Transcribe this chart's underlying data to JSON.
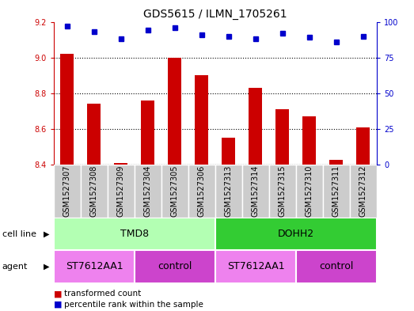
{
  "title": "GDS5615 / ILMN_1705261",
  "samples": [
    "GSM1527307",
    "GSM1527308",
    "GSM1527309",
    "GSM1527304",
    "GSM1527305",
    "GSM1527306",
    "GSM1527313",
    "GSM1527314",
    "GSM1527315",
    "GSM1527310",
    "GSM1527311",
    "GSM1527312"
  ],
  "bar_values": [
    9.02,
    8.74,
    8.41,
    8.76,
    9.0,
    8.9,
    8.55,
    8.83,
    8.71,
    8.67,
    8.43,
    8.61
  ],
  "dot_values": [
    97,
    93,
    88,
    94,
    96,
    91,
    90,
    88,
    92,
    89,
    86,
    90
  ],
  "ylim_left": [
    8.4,
    9.2
  ],
  "ylim_right": [
    0,
    100
  ],
  "yticks_left": [
    8.4,
    8.6,
    8.8,
    9.0,
    9.2
  ],
  "yticks_right": [
    0,
    25,
    50,
    75,
    100
  ],
  "bar_color": "#cc0000",
  "dot_color": "#0000cc",
  "cell_line_groups": [
    {
      "label": "TMD8",
      "start": 0,
      "end": 6,
      "color": "#b3ffb3"
    },
    {
      "label": "DOHH2",
      "start": 6,
      "end": 12,
      "color": "#33cc33"
    }
  ],
  "agent_groups": [
    {
      "label": "ST7612AA1",
      "start": 0,
      "end": 3,
      "color": "#ee82ee"
    },
    {
      "label": "control",
      "start": 3,
      "end": 6,
      "color": "#cc44cc"
    },
    {
      "label": "ST7612AA1",
      "start": 6,
      "end": 9,
      "color": "#ee82ee"
    },
    {
      "label": "control",
      "start": 9,
      "end": 12,
      "color": "#cc44cc"
    }
  ],
  "sample_box_color": "#cccccc",
  "background_color": "#ffffff",
  "plot_bg_color": "#ffffff",
  "grid_color": "#000000",
  "label_fontsize": 7,
  "tick_fontsize": 7,
  "title_fontsize": 10
}
